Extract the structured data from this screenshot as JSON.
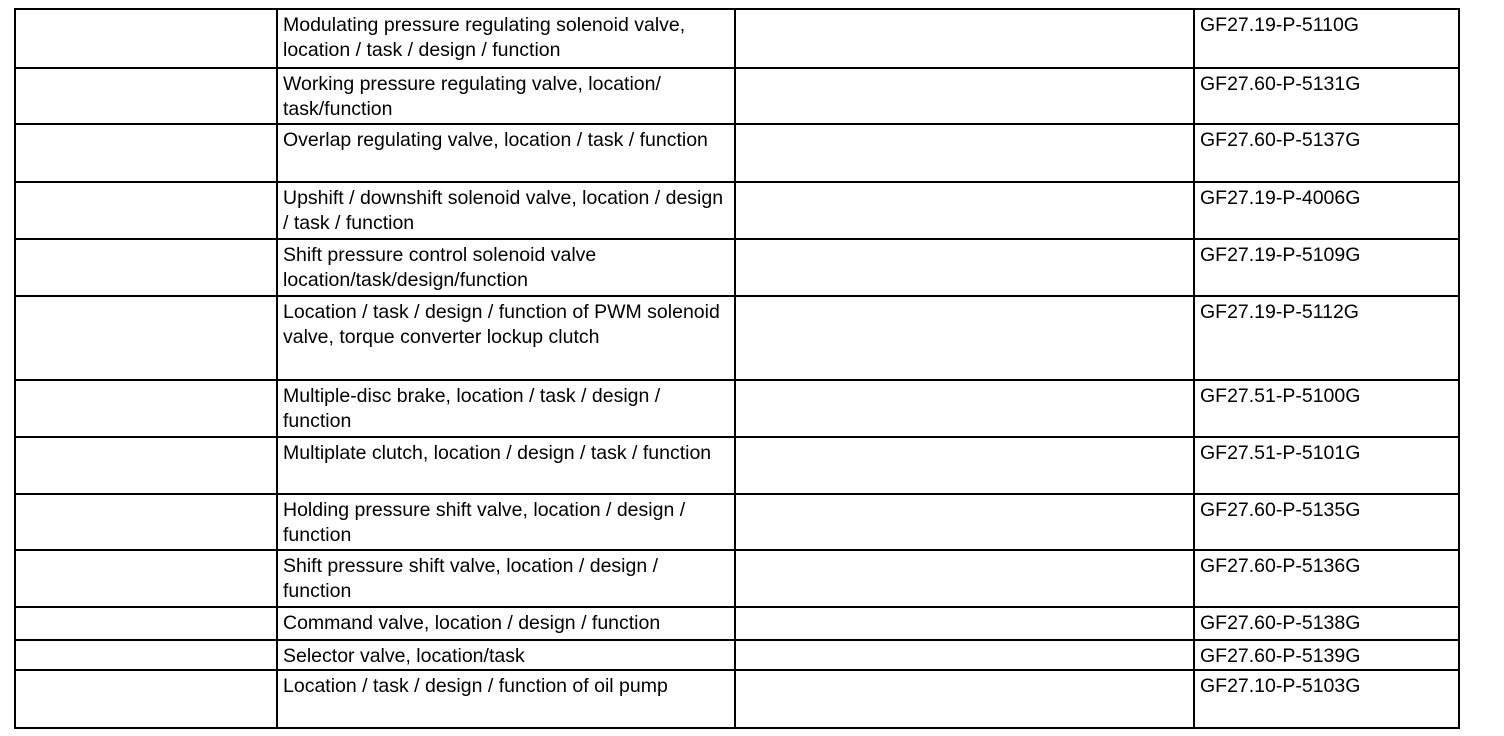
{
  "rows": [
    {
      "description": "Modulating pressure regulating solenoid valve, location / task / design / function",
      "reference": "GF27.19-P-5110G"
    },
    {
      "description": "Working pressure regulating valve, location/ task/function",
      "reference": "GF27.60-P-5131G"
    },
    {
      "description": "Overlap regulating valve, location / task / function",
      "reference": "GF27.60-P-5137G"
    },
    {
      "description": "Upshift / downshift solenoid valve, location / design / task / function",
      "reference": "GF27.19-P-4006G"
    },
    {
      "description": "Shift pressure control solenoid valve location/task/design/function",
      "reference": "GF27.19-P-5109G"
    },
    {
      "description": "Location / task / design / function of PWM solenoid valve, torque converter lockup clutch",
      "reference": "GF27.19-P-5112G"
    },
    {
      "description": "Multiple-disc brake, location / task / design / function",
      "reference": "GF27.51-P-5100G"
    },
    {
      "description": "Multiplate clutch, location / design / task / function",
      "reference": "GF27.51-P-5101G"
    },
    {
      "description": "Holding pressure shift valve, location / design / function",
      "reference": "GF27.60-P-5135G"
    },
    {
      "description": "Shift pressure shift valve, location / design / function",
      "reference": "GF27.60-P-5136G"
    },
    {
      "description": "Command valve, location / design / function",
      "reference": "GF27.60-P-5138G"
    },
    {
      "description": "Selector valve, location/task",
      "reference": "GF27.60-P-5139G"
    },
    {
      "description": "Location / task / design / function of oil pump",
      "reference": "GF27.10-P-5103G"
    }
  ]
}
